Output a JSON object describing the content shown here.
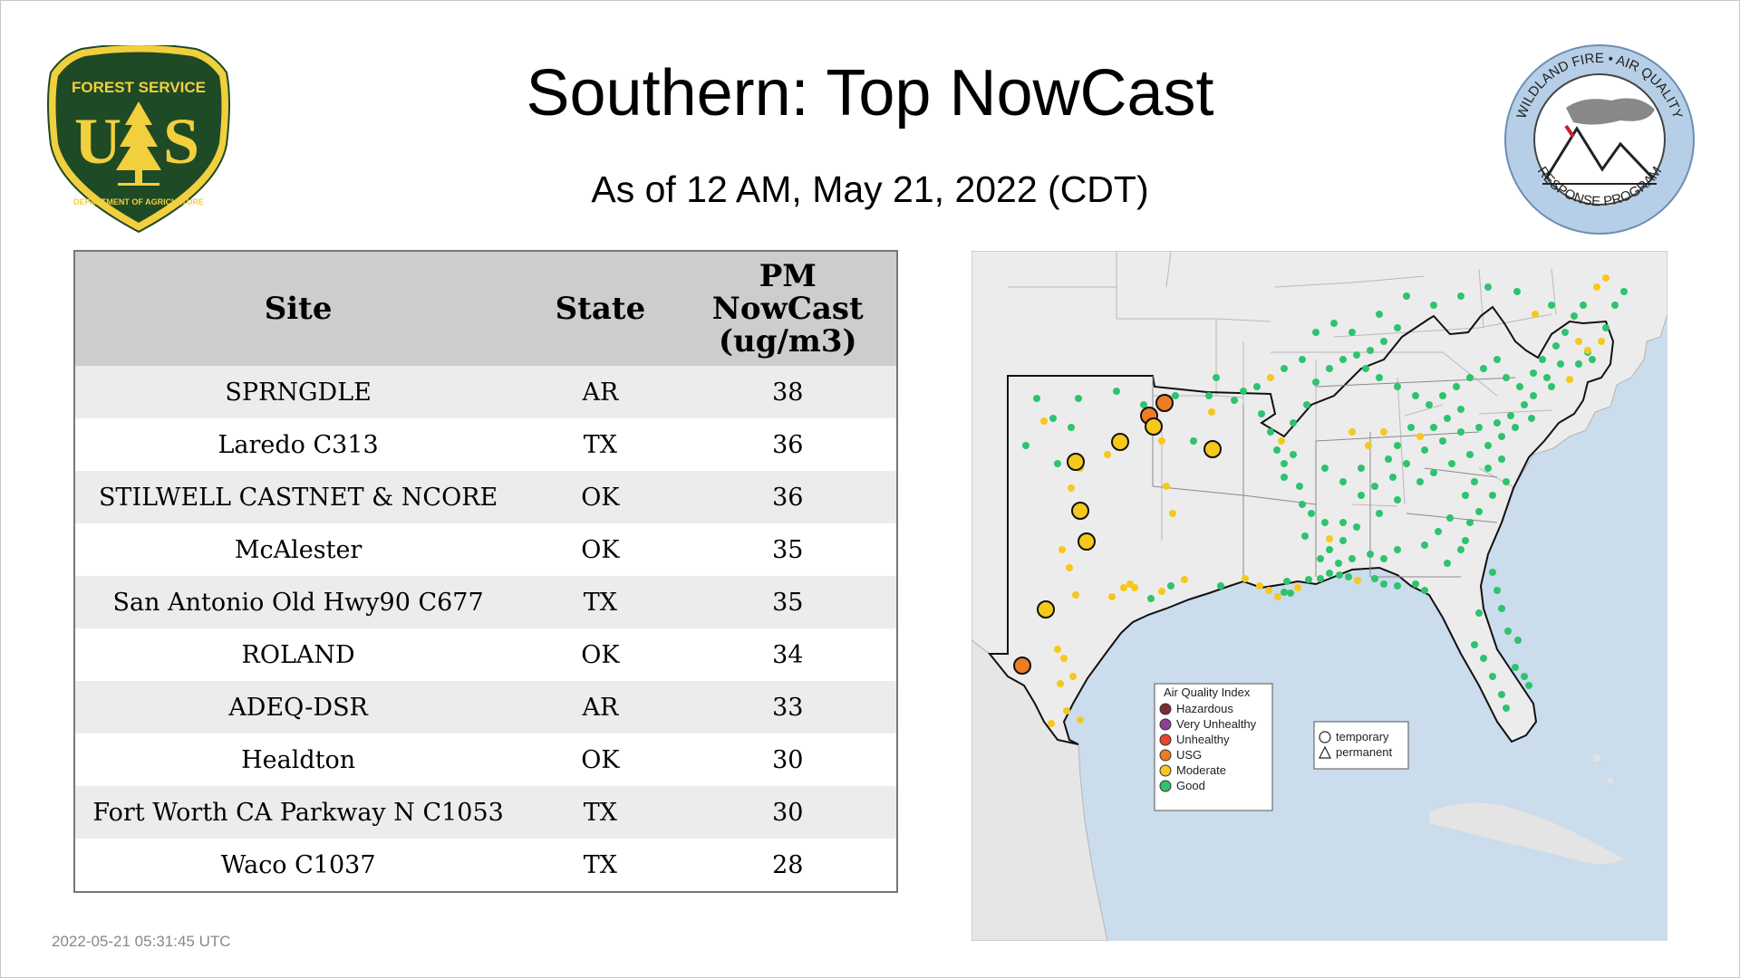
{
  "title": "Southern: Top NowCast",
  "subtitle": "As of 12 AM, May 21, 2022 (CDT)",
  "logos": {
    "forest_service": {
      "top": "FOREST SERVICE",
      "letters": "U S",
      "bottom": "DEPARTMENT OF AGRICULTURE",
      "colors": {
        "green": "#1e4a26",
        "gold": "#f2cf3d"
      }
    },
    "wildland": {
      "ring": "WILDLAND FIRE • AIR QUALITY",
      "bottom": "RESPONSE PROGRAM",
      "ring_color": "#b7cfe6"
    }
  },
  "table": {
    "headers": {
      "site": "Site",
      "state": "State",
      "pm": [
        "PM",
        "NowCast",
        "(ug/m3)"
      ]
    },
    "rows": [
      {
        "site": "SPRNGDLE",
        "state": "AR",
        "pm": "38"
      },
      {
        "site": "Laredo C313",
        "state": "TX",
        "pm": "36"
      },
      {
        "site": "STILWELL CASTNET & NCORE",
        "state": "OK",
        "pm": "36"
      },
      {
        "site": "McAlester",
        "state": "OK",
        "pm": "35"
      },
      {
        "site": "San Antonio Old Hwy90 C677",
        "state": "TX",
        "pm": "35"
      },
      {
        "site": "ROLAND",
        "state": "OK",
        "pm": "34"
      },
      {
        "site": "ADEQ-DSR",
        "state": "AR",
        "pm": "33"
      },
      {
        "site": "Healdton",
        "state": "OK",
        "pm": "30"
      },
      {
        "site": "Fort Worth CA Parkway N C1053",
        "state": "TX",
        "pm": "30"
      },
      {
        "site": "Waco C1037",
        "state": "TX",
        "pm": "28"
      }
    ]
  },
  "map": {
    "legend": {
      "title": "Air Quality Index",
      "items": [
        {
          "label": "Hazardous",
          "color": "#7e2b30"
        },
        {
          "label": "Very Unhealthy",
          "color": "#8f3f97"
        },
        {
          "label": "Unhealthy",
          "color": "#e8452e"
        },
        {
          "label": "USG",
          "color": "#ee7d22"
        },
        {
          "label": "Moderate",
          "color": "#f6c81b"
        },
        {
          "label": "Good",
          "color": "#2ec36e"
        }
      ]
    },
    "shape_legend": {
      "temporary": "temporary",
      "permanent": "permanent"
    },
    "colors": {
      "land": "#ececec",
      "water": "#cbdcec",
      "border": "#b5b5b5",
      "region": "#111111"
    }
  },
  "timestamp": "2022-05-21 05:31:45 UTC"
}
